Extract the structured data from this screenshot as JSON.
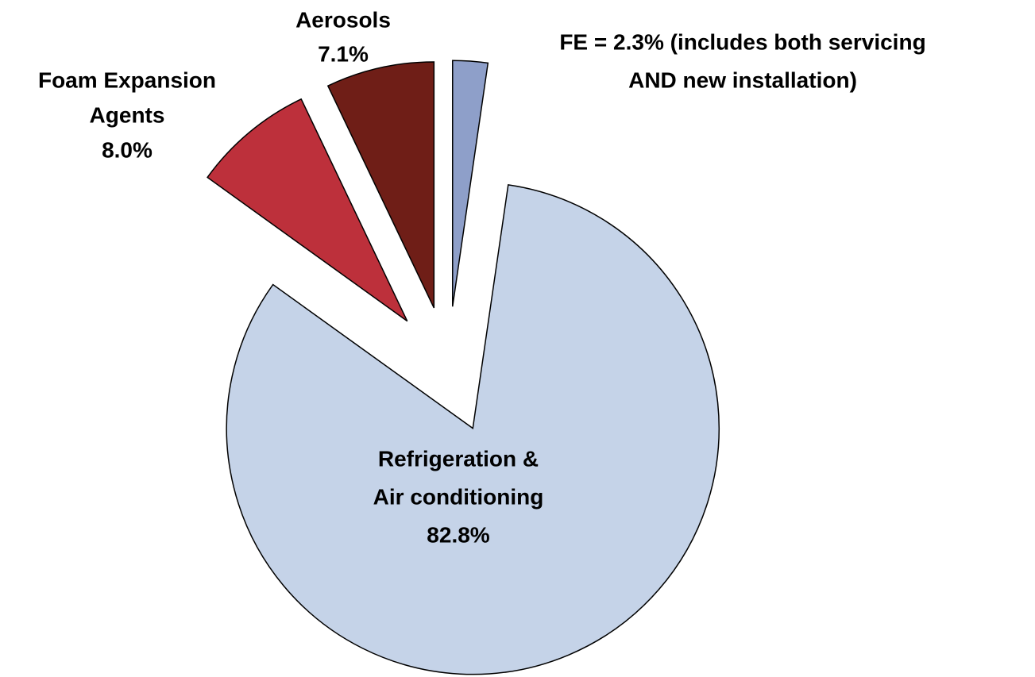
{
  "chart_data": {
    "type": "pie",
    "labels": [
      [
        "FE = 2.3% (includes both servicing",
        "AND new installation)"
      ],
      [
        "Refrigeration &",
        "Air conditioning",
        "82.8%"
      ],
      [
        "Foam Expansion",
        "Agents",
        "8.0%"
      ],
      [
        "Aerosols",
        "7.1%"
      ]
    ],
    "values": [
      2.3,
      82.8,
      8.0,
      7.1
    ],
    "colors": [
      "#8e9fc9",
      "#c5d3e8",
      "#bd303b",
      "#6f1e17"
    ]
  }
}
